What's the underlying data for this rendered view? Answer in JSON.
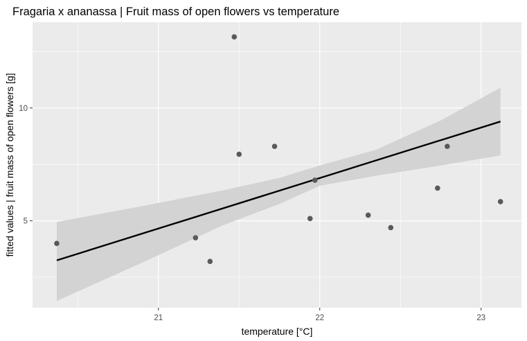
{
  "chart_data": {
    "type": "scatter",
    "title": "Fragaria x ananassa | Fruit mass of open flowers vs temperature",
    "xlabel": "temperature [°C]",
    "ylabel": "fitted values | fruit mass of open flowers [g]",
    "xlim": [
      20.22,
      23.25
    ],
    "ylim": [
      1.15,
      13.8
    ],
    "x_ticks": [
      21,
      22,
      23
    ],
    "x_tick_labels": [
      "21",
      "22",
      "23"
    ],
    "y_ticks": [
      5,
      10
    ],
    "y_tick_labels": [
      "5",
      "10"
    ],
    "x_minor": [
      20.5,
      21.5,
      22.5
    ],
    "y_minor": [
      2.5,
      7.5,
      12.5
    ],
    "grid": true,
    "legend": "none",
    "colors": {
      "panel": "#ebebeb",
      "grid": "#ffffff",
      "points": "#595959",
      "line": "#000000",
      "ribbon": "#d3d3d3"
    },
    "points": [
      {
        "x": 20.37,
        "y": 4.0
      },
      {
        "x": 21.23,
        "y": 4.25
      },
      {
        "x": 21.32,
        "y": 3.2
      },
      {
        "x": 21.47,
        "y": 13.15
      },
      {
        "x": 21.5,
        "y": 7.95
      },
      {
        "x": 21.72,
        "y": 8.3
      },
      {
        "x": 21.94,
        "y": 5.1
      },
      {
        "x": 21.97,
        "y": 6.8
      },
      {
        "x": 22.3,
        "y": 5.25
      },
      {
        "x": 22.44,
        "y": 4.7
      },
      {
        "x": 22.73,
        "y": 6.45
      },
      {
        "x": 22.79,
        "y": 8.3
      },
      {
        "x": 23.12,
        "y": 5.85
      }
    ],
    "fit_line": {
      "x": [
        20.37,
        23.12
      ],
      "y": [
        3.25,
        9.4
      ]
    },
    "confidence_band": {
      "x": [
        20.37,
        20.9,
        21.4,
        21.75,
        22.0,
        22.35,
        22.75,
        23.12
      ],
      "lower": [
        1.45,
        3.15,
        4.8,
        5.75,
        6.55,
        7.0,
        7.45,
        7.9
      ],
      "upper": [
        4.95,
        5.65,
        6.35,
        6.9,
        7.45,
        8.15,
        9.45,
        10.9
      ]
    }
  }
}
